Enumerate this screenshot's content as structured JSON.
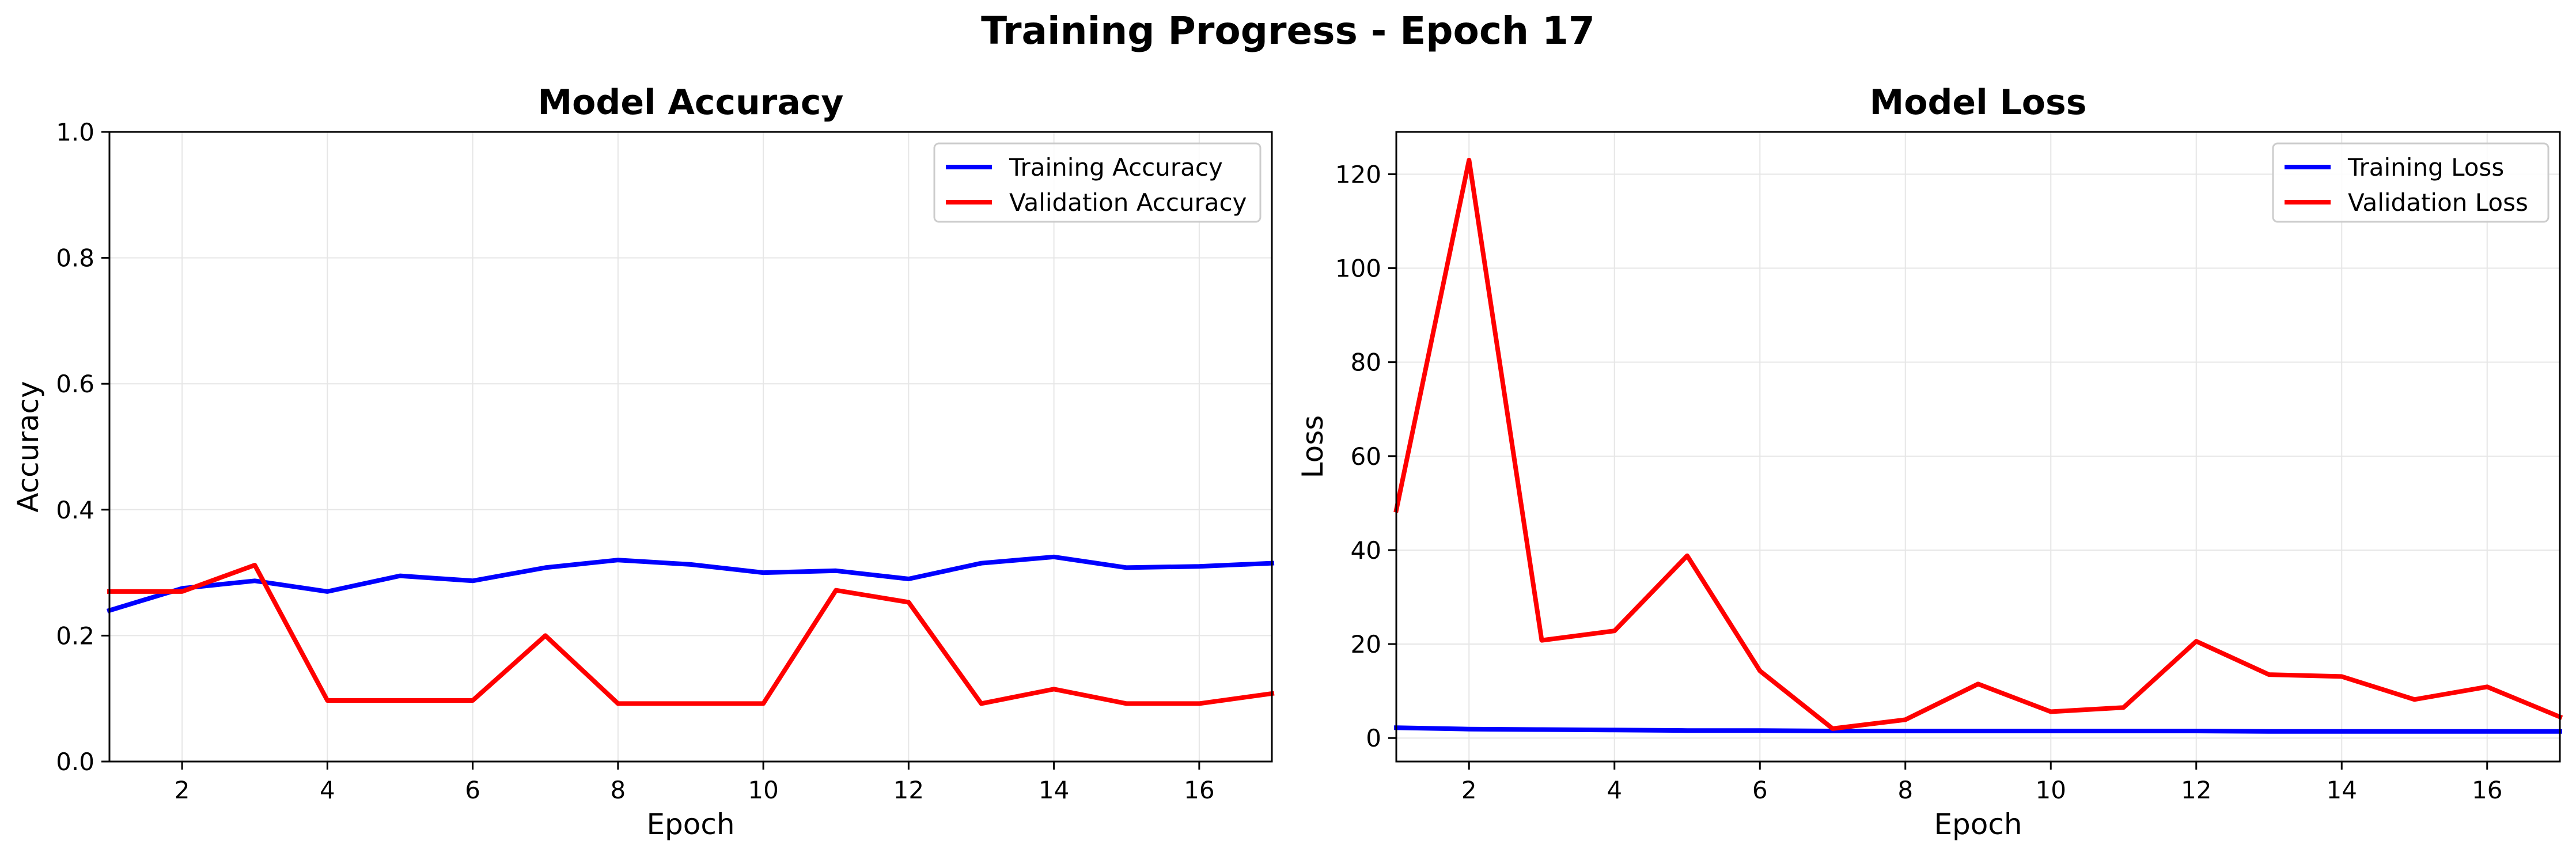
{
  "figure": {
    "title": "Training Progress - Epoch 17"
  },
  "chart_data": [
    {
      "type": "line",
      "title": "Model Accuracy",
      "xlabel": "Epoch",
      "ylabel": "Accuracy",
      "xlim": [
        1,
        17
      ],
      "ylim": [
        0.0,
        1.0
      ],
      "xticks": [
        2,
        4,
        6,
        8,
        10,
        12,
        14,
        16
      ],
      "yticks": [
        0.0,
        0.2,
        0.4,
        0.6,
        0.8,
        1.0
      ],
      "ytick_format": 1,
      "grid": true,
      "legend_position": "top-right",
      "x": [
        1,
        2,
        3,
        4,
        5,
        6,
        7,
        8,
        9,
        10,
        11,
        12,
        13,
        14,
        15,
        16,
        17
      ],
      "series": [
        {
          "name": "Training Accuracy",
          "color": "#0000ff",
          "values": [
            0.24,
            0.275,
            0.287,
            0.27,
            0.295,
            0.287,
            0.308,
            0.32,
            0.313,
            0.3,
            0.303,
            0.29,
            0.315,
            0.325,
            0.308,
            0.31,
            0.315
          ]
        },
        {
          "name": "Validation Accuracy",
          "color": "#ff0000",
          "values": [
            0.27,
            0.27,
            0.312,
            0.097,
            0.097,
            0.097,
            0.2,
            0.092,
            0.092,
            0.092,
            0.272,
            0.253,
            0.092,
            0.115,
            0.092,
            0.092,
            0.108
          ]
        }
      ]
    },
    {
      "type": "line",
      "title": "Model Loss",
      "xlabel": "Epoch",
      "ylabel": "Loss",
      "xlim": [
        1,
        17
      ],
      "ylim": [
        -5,
        129
      ],
      "xticks": [
        2,
        4,
        6,
        8,
        10,
        12,
        14,
        16
      ],
      "yticks": [
        0,
        20,
        40,
        60,
        80,
        100,
        120
      ],
      "ytick_format": 0,
      "grid": true,
      "legend_position": "top-right",
      "x": [
        1,
        2,
        3,
        4,
        5,
        6,
        7,
        8,
        9,
        10,
        11,
        12,
        13,
        14,
        15,
        16,
        17
      ],
      "series": [
        {
          "name": "Training Loss",
          "color": "#0000ff",
          "values": [
            2.2,
            1.9,
            1.8,
            1.7,
            1.6,
            1.6,
            1.5,
            1.5,
            1.5,
            1.5,
            1.5,
            1.5,
            1.4,
            1.4,
            1.4,
            1.4,
            1.4
          ]
        },
        {
          "name": "Validation Loss",
          "color": "#ff0000",
          "values": [
            48.5,
            123,
            20.8,
            22.8,
            38.8,
            14.3,
            2.0,
            3.9,
            11.5,
            5.6,
            6.5,
            20.6,
            13.5,
            13.1,
            8.2,
            10.9,
            4.5
          ]
        }
      ]
    }
  ]
}
